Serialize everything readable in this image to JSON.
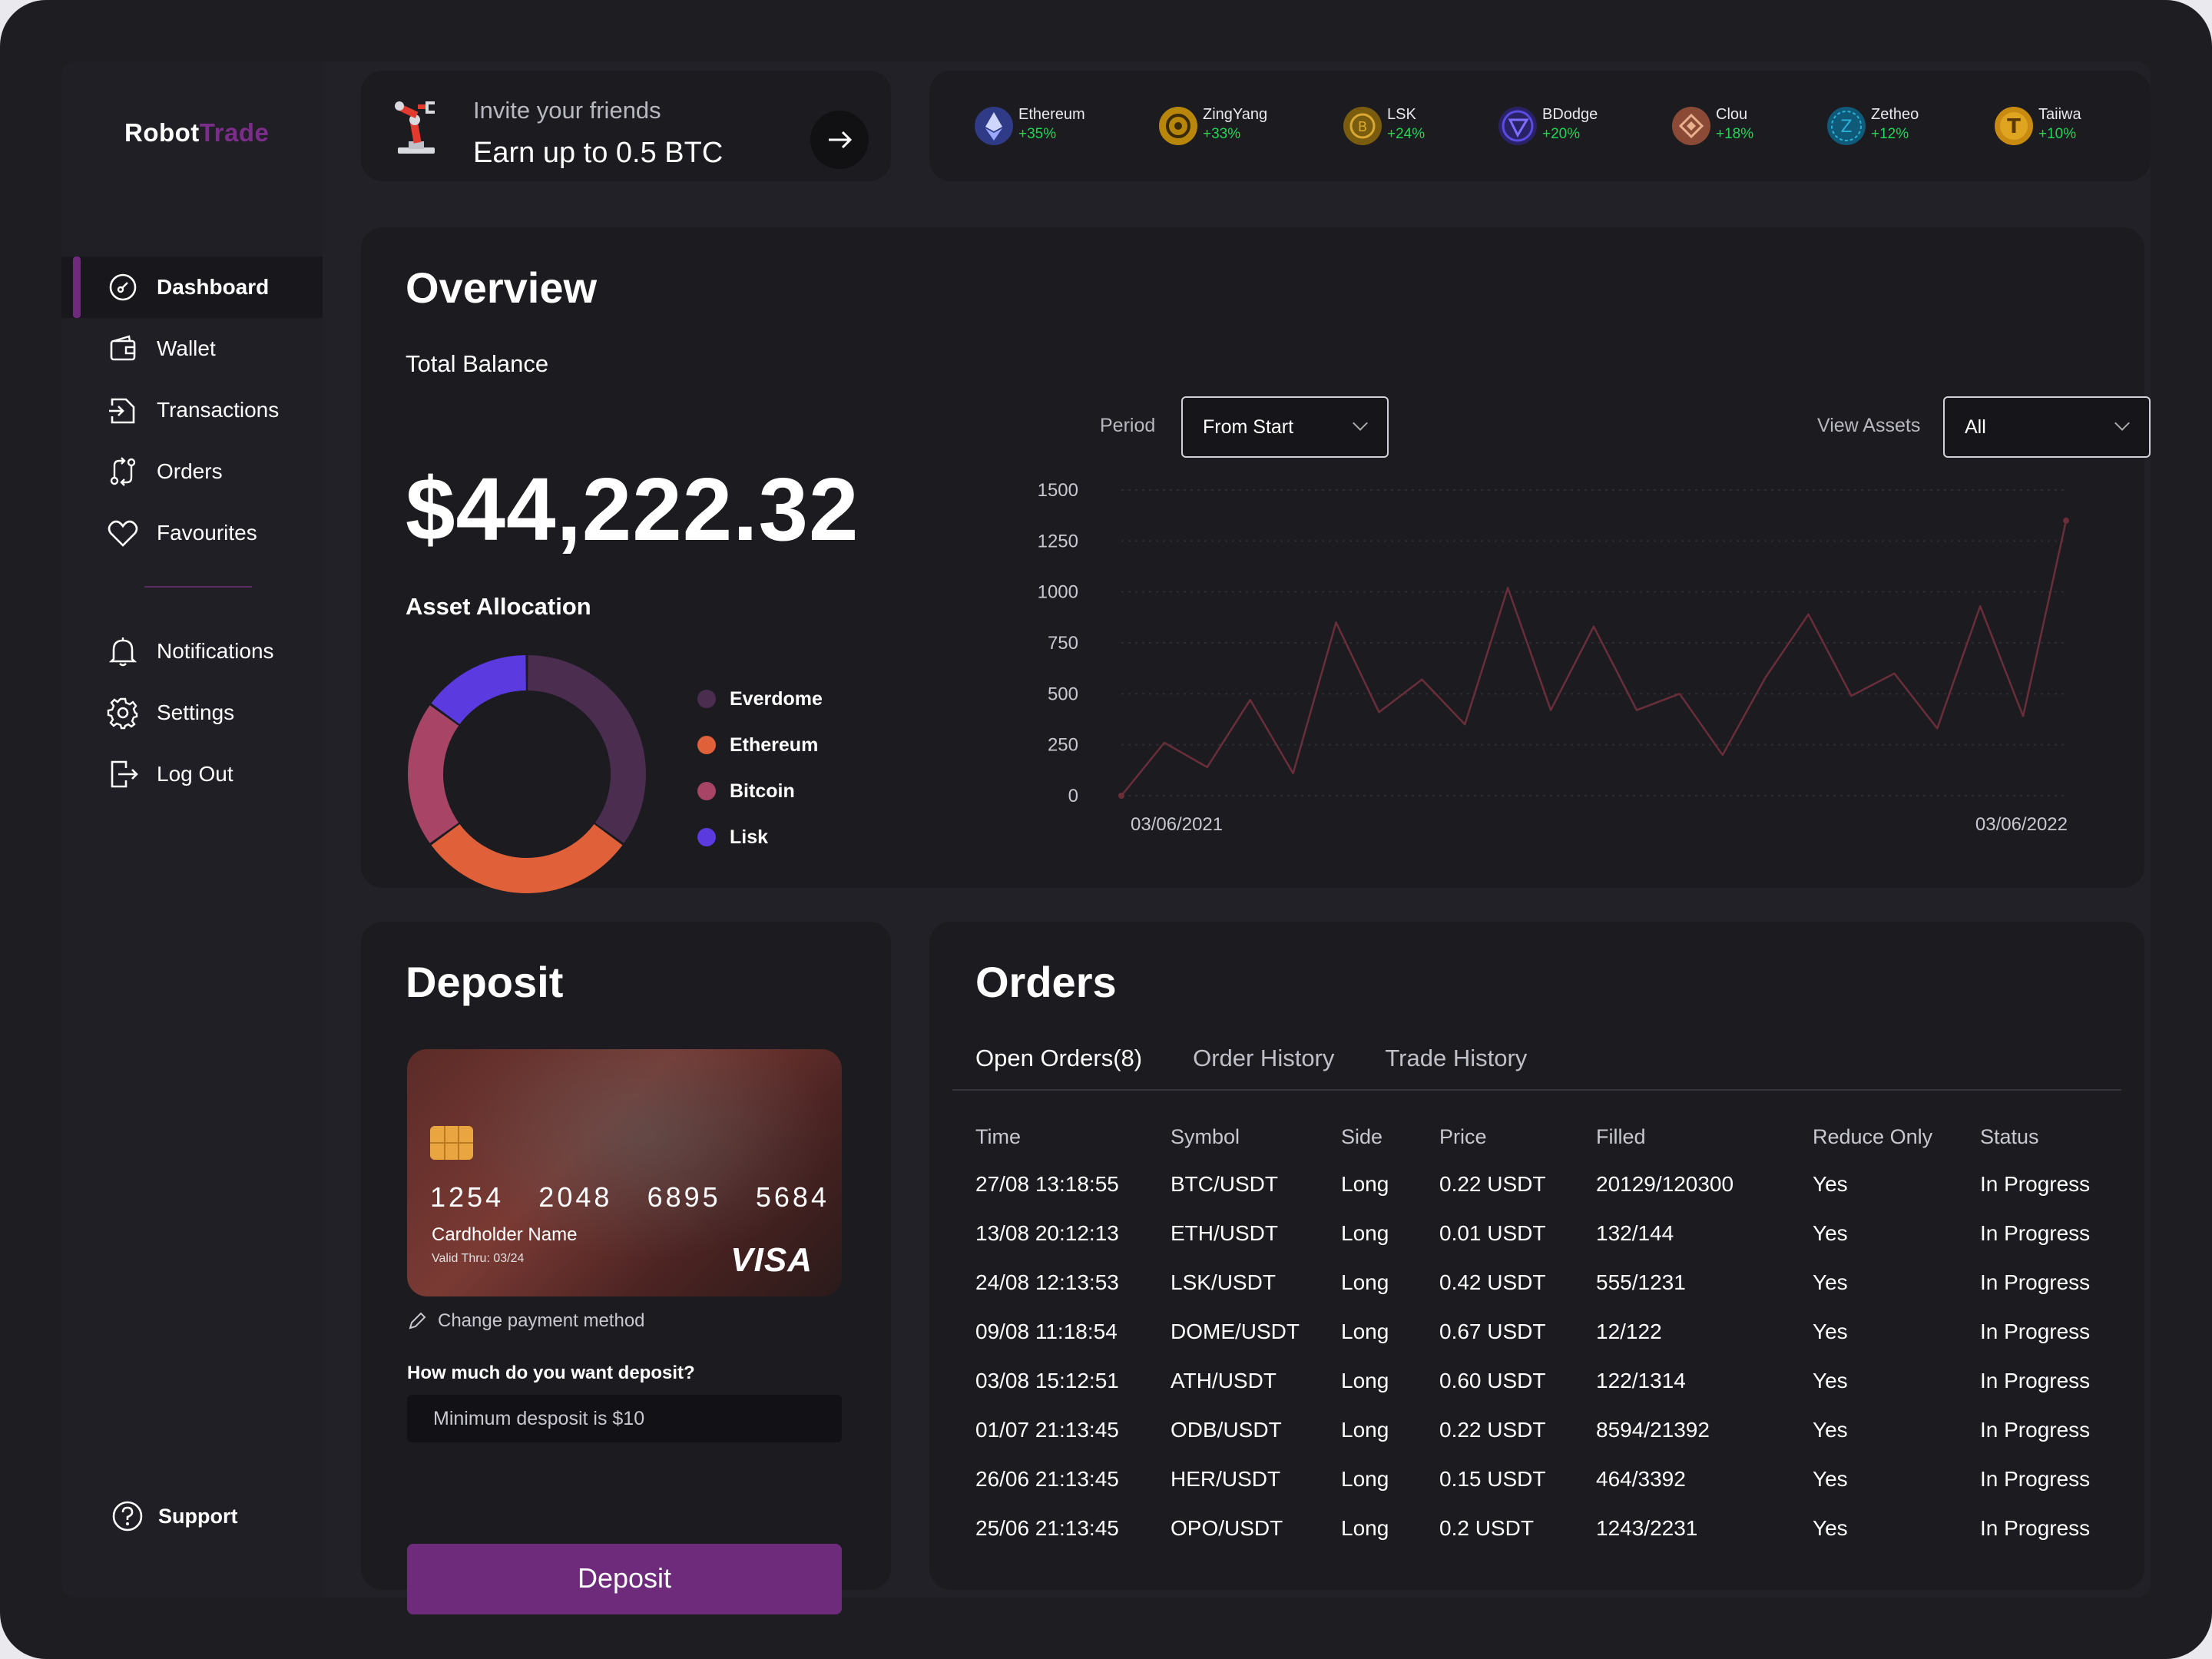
{
  "brand": {
    "part1": "Robot",
    "part2": "Trade"
  },
  "sidebar": {
    "items": [
      {
        "label": "Dashboard",
        "icon": "dashboard-icon",
        "active": true
      },
      {
        "label": "Wallet",
        "icon": "wallet-icon"
      },
      {
        "label": "Transactions",
        "icon": "transactions-icon"
      },
      {
        "label": "Orders",
        "icon": "orders-icon"
      },
      {
        "label": "Favourites",
        "icon": "heart-icon"
      },
      {
        "label": "Notifications",
        "icon": "bell-icon"
      },
      {
        "label": "Settings",
        "icon": "gear-icon"
      },
      {
        "label": "Log Out",
        "icon": "logout-icon"
      }
    ],
    "support_label": "Support"
  },
  "invite": {
    "subtitle": "Invite your friends",
    "title": "Earn up to 0.5 BTC"
  },
  "coins": [
    {
      "name": "Ethereum",
      "change": "+35%",
      "color": "#3a4a9a"
    },
    {
      "name": "ZingYang",
      "change": "+33%",
      "color": "#b8860b"
    },
    {
      "name": "LSK",
      "change": "+24%",
      "color": "#8a6a10"
    },
    {
      "name": "BDodge",
      "change": "+20%",
      "color": "#3b2f8f"
    },
    {
      "name": "Clou",
      "change": "+18%",
      "color": "#9a5a40"
    },
    {
      "name": "Zetheo",
      "change": "+12%",
      "color": "#1a6a8a"
    },
    {
      "name": "Taiiwa",
      "change": "+10%",
      "color": "#c89010"
    }
  ],
  "overview": {
    "title": "Overview",
    "balance_label": "Total Balance",
    "balance": "$44,222.32",
    "allocation_label": "Asset Allocation",
    "period_label": "Period",
    "period_value": "From Start",
    "assets_label": "View Assets",
    "assets_value": "All"
  },
  "allocation": [
    {
      "name": "Everdome",
      "color": "#4a2d4f",
      "value": 35
    },
    {
      "name": "Ethereum",
      "color": "#e0603a",
      "value": 30
    },
    {
      "name": "Bitcoin",
      "color": "#a84465",
      "value": 20
    },
    {
      "name": "Lisk",
      "color": "#5b3ae0",
      "value": 15
    }
  ],
  "chart_data": {
    "type": "line",
    "x_start_label": "03/06/2021",
    "x_end_label": "03/06/2022",
    "yticks": [
      0,
      250,
      500,
      750,
      1000,
      1250,
      1500
    ],
    "ylim": [
      0,
      1500
    ],
    "values": [
      0,
      260,
      140,
      470,
      110,
      850,
      410,
      570,
      350,
      1020,
      420,
      830,
      420,
      500,
      200,
      580,
      890,
      490,
      600,
      330,
      930,
      390,
      1350
    ]
  },
  "deposit": {
    "title": "Deposit",
    "card_groups": [
      "1254",
      "2048",
      "6895",
      "5684"
    ],
    "cardholder": "Cardholder Name",
    "valid": "Valid Thru: 03/24",
    "brand": "VISA",
    "change_method": "Change payment method",
    "question": "How much do you want deposit?",
    "placeholder": "Minimum desposit is $10",
    "button": "Deposit"
  },
  "orders": {
    "title": "Orders",
    "tabs": [
      "Open Orders(8)",
      "Order History",
      "Trade History"
    ],
    "columns": [
      "Time",
      "Symbol",
      "Side",
      "Price",
      "Filled",
      "Reduce Only",
      "Status"
    ],
    "rows": [
      [
        "27/08 13:18:55",
        "BTC/USDT",
        "Long",
        "0.22 USDT",
        "20129/120300",
        "Yes",
        "In Progress"
      ],
      [
        "13/08 20:12:13",
        "ETH/USDT",
        "Long",
        "0.01 USDT",
        "132/144",
        "Yes",
        "In Progress"
      ],
      [
        "24/08 12:13:53",
        "LSK/USDT",
        "Long",
        "0.42 USDT",
        "555/1231",
        "Yes",
        "In Progress"
      ],
      [
        "09/08 11:18:54",
        "DOME/USDT",
        "Long",
        "0.67 USDT",
        "12/122",
        "Yes",
        "In Progress"
      ],
      [
        "03/08 15:12:51",
        "ATH/USDT",
        "Long",
        "0.60 USDT",
        "122/1314",
        "Yes",
        "In Progress"
      ],
      [
        "01/07 21:13:45",
        "ODB/USDT",
        "Long",
        "0.22 USDT",
        "8594/21392",
        "Yes",
        "In Progress"
      ],
      [
        "26/06 21:13:45",
        "HER/USDT",
        "Long",
        "0.15 USDT",
        "464/3392",
        "Yes",
        "In Progress"
      ],
      [
        "25/06 21:13:45",
        "OPO/USDT",
        "Long",
        "0.2 USDT",
        "1243/2231",
        "Yes",
        "In Progress"
      ]
    ]
  }
}
